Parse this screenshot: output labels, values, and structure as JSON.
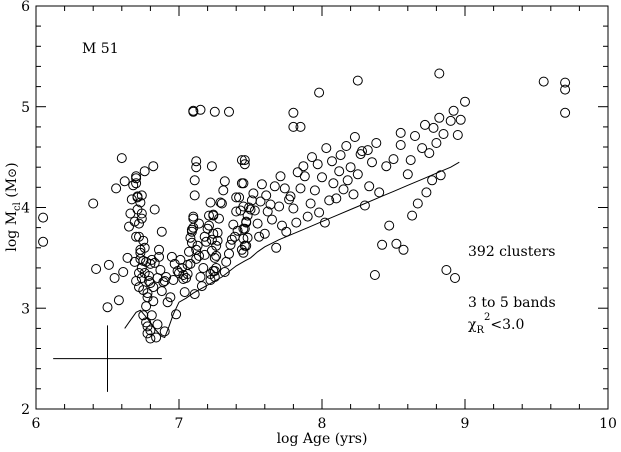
{
  "chart_data": {
    "type": "scatter",
    "title": "",
    "xlabel": "log Age (yrs)",
    "ylabel_parts": {
      "main": "log M",
      "sub": "cl",
      "unit_open": " (M",
      "unit_sym": "⊙",
      "unit_close": ")"
    },
    "xlim": [
      6,
      10
    ],
    "ylim": [
      2,
      6
    ],
    "xticks": [
      6,
      7,
      8,
      9,
      10
    ],
    "yticks": [
      2,
      3,
      4,
      5,
      6
    ],
    "grid": false,
    "legend": "none",
    "annotations": {
      "galaxy": "M 51",
      "count": "392 clusters",
      "bands": "3 to 5 bands",
      "chi": {
        "sym": "χ",
        "sub": "R",
        "sup": "2",
        "rest": "<3.0"
      }
    },
    "error_bar": {
      "x": 6.5,
      "y": 2.5,
      "x_err": 0.38,
      "y_err": 0.33
    },
    "limit_curve": {
      "x": [
        6.62,
        6.66,
        6.7,
        6.73,
        6.76,
        6.8,
        6.84,
        6.88,
        6.9,
        6.93,
        6.96,
        7.0,
        7.05,
        7.1,
        7.2,
        7.3,
        7.4,
        7.46,
        7.5,
        7.55,
        7.6,
        7.7,
        7.8,
        7.9,
        8.0,
        8.1,
        8.2,
        8.3,
        8.4,
        8.5,
        8.6,
        8.7,
        8.8,
        8.9,
        8.96
      ],
      "y": [
        2.8,
        2.88,
        2.96,
        2.98,
        2.93,
        2.86,
        2.78,
        2.72,
        2.71,
        2.82,
        2.94,
        3.06,
        3.1,
        3.15,
        3.23,
        3.31,
        3.42,
        3.47,
        3.5,
        3.56,
        3.61,
        3.68,
        3.74,
        3.8,
        3.86,
        3.92,
        3.98,
        4.04,
        4.1,
        4.16,
        4.22,
        4.28,
        4.34,
        4.4,
        4.45
      ]
    },
    "points_x": [
      6.05,
      6.05,
      6.4,
      6.42,
      6.5,
      6.51,
      6.55,
      6.56,
      6.58,
      6.6,
      6.61,
      6.62,
      6.64,
      6.65,
      6.66,
      6.67,
      6.68,
      6.7,
      6.7,
      6.7,
      6.71,
      6.72,
      6.72,
      6.73,
      6.73,
      6.74,
      6.74,
      6.75,
      6.75,
      6.76,
      6.76,
      6.77,
      6.78,
      6.78,
      6.79,
      6.8,
      6.8,
      6.81,
      6.82,
      6.82,
      6.83,
      6.84,
      6.85,
      6.86,
      6.88,
      6.9,
      6.9,
      6.92,
      6.94,
      6.96,
      6.98,
      7.0,
      7.01,
      7.02,
      7.03,
      7.04,
      7.05,
      7.06,
      7.07,
      7.08,
      7.09,
      7.1,
      7.1,
      7.11,
      7.12,
      7.13,
      7.14,
      7.15,
      7.16,
      7.17,
      7.18,
      7.19,
      7.2,
      7.21,
      7.22,
      7.23,
      7.24,
      7.25,
      7.26,
      7.27,
      7.28,
      7.3,
      7.31,
      7.32,
      7.33,
      7.35,
      7.37,
      7.38,
      7.4,
      7.42,
      7.44,
      7.44,
      7.45,
      7.45,
      7.46,
      7.47,
      7.48,
      7.5,
      7.52,
      7.55,
      7.56,
      7.58,
      7.6,
      7.62,
      7.65,
      7.68,
      7.7,
      7.72,
      7.75,
      7.78,
      7.8,
      7.82,
      7.85,
      7.88,
      7.9,
      7.92,
      7.95,
      7.98,
      8.0,
      8.02,
      8.05,
      8.08,
      8.1,
      8.12,
      8.15,
      8.18,
      8.2,
      8.22,
      8.25,
      8.28,
      8.3,
      8.33,
      8.35,
      8.38,
      8.4,
      8.45,
      8.5,
      8.55,
      8.6,
      8.62,
      8.65,
      8.7,
      8.72,
      8.75,
      8.78,
      8.8,
      8.82,
      8.85,
      8.9,
      8.92,
      8.95,
      8.97,
      9.0,
      9.55,
      9.7,
      9.7,
      9.7,
      7.8,
      7.8,
      7.85,
      7.98,
      8.25,
      8.55,
      8.82,
      7.1,
      7.15,
      7.25,
      7.35,
      7.4,
      7.45,
      7.45,
      7.46,
      7.46,
      7.47,
      6.77,
      6.75,
      6.78,
      6.8,
      6.82,
      6.85,
      6.86,
      6.88,
      6.74,
      6.74,
      6.74,
      6.75,
      6.76,
      6.77,
      6.78,
      6.79,
      6.8,
      6.81,
      6.83,
      6.87,
      6.89,
      6.91,
      6.95,
      6.97,
      6.99,
      7.03,
      7.06,
      7.08,
      7.12,
      7.14,
      7.18,
      7.21,
      7.24,
      7.27,
      7.29,
      7.32,
      7.36,
      7.39,
      7.41,
      7.43,
      7.44,
      7.45,
      7.46,
      7.47,
      7.48,
      7.49,
      7.51,
      7.53,
      7.57,
      7.61,
      7.64,
      7.67,
      7.71,
      7.74,
      7.77,
      7.83,
      7.87,
      7.93,
      7.97,
      8.03,
      8.07,
      8.13,
      8.17,
      8.23,
      8.27,
      8.32,
      8.37,
      8.42,
      8.47,
      8.52,
      8.57,
      8.63,
      8.67,
      8.73,
      8.77,
      8.83,
      8.87,
      8.93,
      6.73,
      6.73,
      6.72,
      6.72,
      6.71,
      6.71,
      6.7,
      6.7,
      6.69,
      6.69,
      7.22,
      7.22,
      7.23,
      7.23,
      7.24,
      7.24,
      7.25,
      7.25,
      7.26,
      7.26,
      7.09,
      7.09,
      7.1,
      7.1,
      7.11,
      7.11,
      7.12,
      7.12,
      7.13,
      7.13,
      7.44,
      7.44,
      7.45,
      7.45,
      7.46,
      7.46,
      7.47,
      7.47,
      7.48,
      7.48
    ],
    "points_y": [
      3.9,
      3.66,
      4.04,
      3.39,
      3.01,
      3.43,
      3.3,
      4.19,
      3.08,
      4.49,
      3.36,
      4.26,
      3.5,
      3.81,
      3.94,
      4.08,
      4.22,
      4.31,
      3.71,
      3.27,
      4.1,
      3.35,
      3.21,
      3.55,
      4.05,
      3.3,
      3.4,
      3.47,
      3.18,
      4.36,
      3.6,
      3.02,
      3.11,
      2.82,
      3.27,
      2.78,
      3.44,
      2.93,
      4.41,
      3.07,
      3.98,
      2.71,
      2.84,
      3.58,
      3.17,
      3.27,
      2.77,
      3.06,
      3.11,
      3.28,
      2.94,
      3.35,
      3.48,
      3.4,
      3.33,
      3.16,
      3.3,
      3.43,
      3.56,
      3.7,
      3.78,
      3.91,
      4.96,
      3.14,
      3.49,
      3.62,
      3.84,
      3.31,
      3.22,
      3.4,
      3.53,
      3.66,
      3.79,
      3.92,
      4.05,
      4.41,
      3.37,
      3.5,
      3.62,
      3.75,
      3.89,
      4.04,
      4.17,
      3.36,
      3.46,
      3.54,
      3.68,
      3.83,
      3.96,
      4.1,
      4.24,
      4.47,
      3.79,
      3.55,
      3.62,
      3.86,
      3.7,
      3.98,
      4.14,
      3.84,
      3.71,
      4.23,
      3.74,
      3.96,
      3.88,
      3.6,
      4.01,
      3.82,
      3.76,
      4.11,
      3.99,
      3.85,
      4.19,
      4.31,
      3.91,
      4.04,
      4.17,
      3.95,
      4.3,
      3.85,
      4.07,
      4.24,
      4.09,
      4.36,
      4.18,
      4.27,
      4.4,
      4.13,
      4.33,
      4.56,
      4.02,
      4.21,
      4.45,
      4.64,
      4.15,
      4.41,
      4.48,
      4.62,
      4.33,
      4.47,
      4.71,
      4.59,
      4.82,
      4.54,
      4.79,
      4.64,
      4.89,
      4.73,
      4.86,
      4.96,
      4.72,
      4.87,
      5.05,
      5.25,
      5.24,
      5.17,
      4.94,
      4.8,
      4.94,
      4.8,
      5.14,
      5.26,
      4.74,
      5.33,
      4.95,
      4.97,
      4.95,
      4.95,
      4.1,
      4.01,
      4.24,
      4.43,
      4.47,
      3.62,
      2.86,
      2.93,
      2.75,
      2.7,
      3.21,
      3.3,
      3.51,
      3.76,
      3.94,
      4.12,
      3.89,
      3.67,
      3.35,
      3.46,
      3.15,
      3.32,
      3.25,
      3.48,
      3.45,
      3.38,
      3.26,
      3.31,
      3.51,
      3.44,
      3.37,
      3.29,
      3.34,
      3.44,
      3.58,
      3.52,
      3.71,
      3.82,
      3.93,
      3.67,
      4.05,
      4.26,
      3.63,
      3.71,
      3.77,
      3.97,
      3.58,
      3.69,
      3.79,
      3.85,
      3.92,
      4.0,
      4.07,
      3.97,
      4.06,
      4.12,
      4.03,
      4.21,
      4.31,
      4.19,
      4.08,
      4.35,
      4.41,
      4.5,
      4.43,
      4.59,
      4.46,
      4.52,
      4.61,
      4.7,
      4.53,
      4.57,
      3.33,
      3.63,
      3.82,
      3.64,
      3.58,
      3.92,
      4.04,
      4.15,
      4.27,
      4.32,
      3.38,
      3.3,
      3.49,
      3.58,
      3.71,
      3.84,
      3.98,
      4.11,
      4.24,
      4.29,
      3.46,
      3.86,
      3.34,
      3.28,
      3.57,
      3.68,
      3.74,
      3.92,
      3.31,
      3.37,
      3.4,
      3.52,
      3.65,
      3.76,
      3.8,
      3.89,
      4.12,
      4.27,
      4.4,
      4.46
    ]
  }
}
